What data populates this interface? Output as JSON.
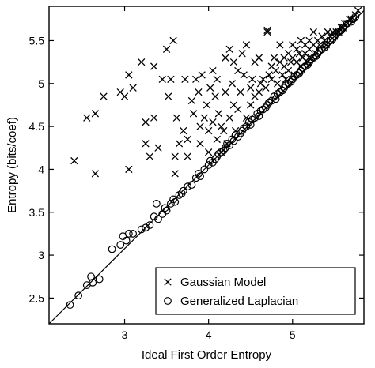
{
  "chart_data": {
    "type": "scatter",
    "title": "",
    "xlabel": "Ideal First Order Entropy",
    "ylabel": "Entropy (bits/coef)",
    "xlim": [
      2.1,
      5.85
    ],
    "ylim": [
      2.2,
      5.9
    ],
    "xticks": [
      3,
      4,
      5
    ],
    "xtick_labels": [
      "3",
      "4",
      "5"
    ],
    "yticks": [
      2.5,
      3,
      3.5,
      4,
      4.5,
      5,
      5.5
    ],
    "ytick_labels": [
      "2.5",
      "3",
      "3.5",
      "4",
      "4.5",
      "5",
      "5.5"
    ],
    "grid": false,
    "legend_position": "bottom-right",
    "reference_line": {
      "description": "y = x",
      "from": [
        2.1,
        2.1
      ],
      "to": [
        5.85,
        5.85
      ]
    },
    "series": [
      {
        "name": "Gaussian Model",
        "marker": "x",
        "points": [
          [
            2.4,
            4.1
          ],
          [
            2.55,
            4.6
          ],
          [
            2.65,
            4.65
          ],
          [
            2.65,
            3.95
          ],
          [
            2.75,
            4.85
          ],
          [
            3.05,
            4.0
          ],
          [
            2.95,
            4.9
          ],
          [
            3.0,
            4.85
          ],
          [
            3.05,
            5.1
          ],
          [
            3.1,
            4.95
          ],
          [
            3.2,
            5.25
          ],
          [
            3.25,
            4.55
          ],
          [
            3.25,
            4.3
          ],
          [
            3.3,
            4.15
          ],
          [
            3.35,
            4.6
          ],
          [
            3.35,
            5.2
          ],
          [
            3.4,
            4.25
          ],
          [
            3.45,
            5.05
          ],
          [
            3.5,
            5.4
          ],
          [
            3.52,
            4.85
          ],
          [
            3.55,
            5.05
          ],
          [
            3.58,
            5.5
          ],
          [
            3.6,
            4.15
          ],
          [
            3.6,
            3.95
          ],
          [
            3.62,
            4.6
          ],
          [
            3.65,
            4.3
          ],
          [
            3.7,
            4.45
          ],
          [
            3.72,
            5.05
          ],
          [
            3.75,
            4.35
          ],
          [
            3.75,
            4.15
          ],
          [
            3.8,
            4.8
          ],
          [
            3.82,
            4.65
          ],
          [
            3.85,
            5.05
          ],
          [
            3.88,
            4.9
          ],
          [
            3.9,
            4.5
          ],
          [
            3.9,
            4.3
          ],
          [
            3.92,
            5.1
          ],
          [
            3.95,
            4.6
          ],
          [
            3.98,
            4.75
          ],
          [
            4.0,
            4.45
          ],
          [
            4.0,
            4.2
          ],
          [
            4.02,
            4.95
          ],
          [
            4.05,
            5.15
          ],
          [
            4.05,
            4.55
          ],
          [
            4.08,
            4.85
          ],
          [
            4.1,
            4.35
          ],
          [
            4.1,
            5.05
          ],
          [
            4.12,
            4.65
          ],
          [
            4.15,
            4.2
          ],
          [
            4.15,
            4.5
          ],
          [
            4.18,
            4.45
          ],
          [
            4.2,
            4.9
          ],
          [
            4.2,
            5.3
          ],
          [
            4.22,
            4.3
          ],
          [
            4.25,
            5.4
          ],
          [
            4.25,
            4.6
          ],
          [
            4.28,
            5.0
          ],
          [
            4.3,
            5.25
          ],
          [
            4.3,
            4.75
          ],
          [
            4.32,
            4.45
          ],
          [
            4.35,
            5.15
          ],
          [
            4.35,
            4.7
          ],
          [
            4.38,
            4.9
          ],
          [
            4.4,
            5.35
          ],
          [
            4.42,
            5.1
          ],
          [
            4.45,
            4.6
          ],
          [
            4.45,
            5.45
          ],
          [
            4.5,
            4.75
          ],
          [
            4.5,
            4.95
          ],
          [
            4.52,
            5.05
          ],
          [
            4.55,
            5.25
          ],
          [
            4.55,
            4.85
          ],
          [
            4.6,
            4.9
          ],
          [
            4.6,
            5.3
          ],
          [
            4.62,
            5.0
          ],
          [
            4.65,
            5.05
          ],
          [
            4.68,
            4.95
          ],
          [
            4.7,
            5.62
          ],
          [
            4.7,
            5.6
          ],
          [
            4.72,
            5.1
          ],
          [
            4.75,
            5.2
          ],
          [
            4.75,
            5.05
          ],
          [
            4.78,
            5.3
          ],
          [
            4.8,
            5.15
          ],
          [
            4.82,
            5.0
          ],
          [
            4.85,
            5.25
          ],
          [
            4.85,
            5.45
          ],
          [
            4.88,
            5.1
          ],
          [
            4.9,
            5.3
          ],
          [
            4.9,
            5.2
          ],
          [
            4.92,
            5.05
          ],
          [
            4.95,
            5.35
          ],
          [
            4.95,
            5.15
          ],
          [
            4.98,
            5.25
          ],
          [
            5.0,
            5.3
          ],
          [
            5.0,
            5.45
          ],
          [
            5.02,
            5.1
          ],
          [
            5.05,
            5.4
          ],
          [
            5.05,
            5.25
          ],
          [
            5.08,
            5.35
          ],
          [
            5.1,
            5.5
          ],
          [
            5.1,
            5.2
          ],
          [
            5.12,
            5.3
          ],
          [
            5.15,
            5.45
          ],
          [
            5.15,
            5.35
          ],
          [
            5.18,
            5.25
          ],
          [
            5.2,
            5.5
          ],
          [
            5.2,
            5.4
          ],
          [
            5.22,
            5.3
          ],
          [
            5.25,
            5.6
          ],
          [
            5.25,
            5.45
          ],
          [
            5.28,
            5.35
          ],
          [
            5.3,
            5.5
          ],
          [
            5.3,
            5.4
          ],
          [
            5.32,
            5.45
          ],
          [
            5.35,
            5.55
          ],
          [
            5.38,
            5.5
          ],
          [
            5.4,
            5.45
          ],
          [
            5.42,
            5.6
          ],
          [
            5.45,
            5.55
          ],
          [
            5.45,
            5.5
          ],
          [
            5.48,
            5.6
          ],
          [
            5.5,
            5.55
          ],
          [
            5.52,
            5.6
          ],
          [
            5.55,
            5.6
          ],
          [
            5.58,
            5.65
          ],
          [
            5.6,
            5.65
          ],
          [
            5.62,
            5.7
          ],
          [
            5.65,
            5.7
          ],
          [
            5.68,
            5.75
          ],
          [
            5.7,
            5.75
          ],
          [
            5.75,
            5.8
          ],
          [
            5.78,
            5.85
          ]
        ]
      },
      {
        "name": "Generalized Laplacian",
        "marker": "o",
        "points": [
          [
            2.35,
            2.42
          ],
          [
            2.45,
            2.53
          ],
          [
            2.55,
            2.65
          ],
          [
            2.6,
            2.75
          ],
          [
            2.62,
            2.68
          ],
          [
            2.7,
            2.72
          ],
          [
            2.85,
            3.07
          ],
          [
            2.95,
            3.12
          ],
          [
            2.98,
            3.22
          ],
          [
            3.02,
            3.17
          ],
          [
            3.05,
            3.25
          ],
          [
            3.1,
            3.25
          ],
          [
            3.2,
            3.3
          ],
          [
            3.25,
            3.32
          ],
          [
            3.3,
            3.35
          ],
          [
            3.35,
            3.45
          ],
          [
            3.38,
            3.6
          ],
          [
            3.4,
            3.42
          ],
          [
            3.45,
            3.48
          ],
          [
            3.48,
            3.55
          ],
          [
            3.5,
            3.52
          ],
          [
            3.55,
            3.6
          ],
          [
            3.58,
            3.65
          ],
          [
            3.6,
            3.62
          ],
          [
            3.65,
            3.7
          ],
          [
            3.68,
            3.72
          ],
          [
            3.7,
            3.75
          ],
          [
            3.75,
            3.8
          ],
          [
            3.8,
            3.82
          ],
          [
            3.85,
            3.9
          ],
          [
            3.88,
            3.95
          ],
          [
            3.9,
            3.92
          ],
          [
            3.95,
            4.0
          ],
          [
            4.0,
            4.05
          ],
          [
            4.02,
            4.1
          ],
          [
            4.05,
            4.08
          ],
          [
            4.08,
            4.12
          ],
          [
            4.1,
            4.15
          ],
          [
            4.12,
            4.18
          ],
          [
            4.15,
            4.2
          ],
          [
            4.18,
            4.22
          ],
          [
            4.2,
            4.25
          ],
          [
            4.22,
            4.3
          ],
          [
            4.25,
            4.28
          ],
          [
            4.28,
            4.35
          ],
          [
            4.3,
            4.33
          ],
          [
            4.32,
            4.4
          ],
          [
            4.35,
            4.38
          ],
          [
            4.38,
            4.42
          ],
          [
            4.4,
            4.45
          ],
          [
            4.42,
            4.48
          ],
          [
            4.45,
            4.5
          ],
          [
            4.48,
            4.55
          ],
          [
            4.5,
            4.52
          ],
          [
            4.52,
            4.58
          ],
          [
            4.55,
            4.6
          ],
          [
            4.58,
            4.65
          ],
          [
            4.6,
            4.62
          ],
          [
            4.62,
            4.68
          ],
          [
            4.65,
            4.7
          ],
          [
            4.68,
            4.72
          ],
          [
            4.7,
            4.75
          ],
          [
            4.72,
            4.78
          ],
          [
            4.75,
            4.8
          ],
          [
            4.78,
            4.85
          ],
          [
            4.8,
            4.82
          ],
          [
            4.82,
            4.88
          ],
          [
            4.85,
            4.9
          ],
          [
            4.88,
            4.92
          ],
          [
            4.9,
            4.95
          ],
          [
            4.92,
            4.98
          ],
          [
            4.95,
            5.0
          ],
          [
            4.98,
            5.02
          ],
          [
            5.0,
            5.05
          ],
          [
            5.02,
            5.08
          ],
          [
            5.05,
            5.1
          ],
          [
            5.08,
            5.12
          ],
          [
            5.1,
            5.15
          ],
          [
            5.12,
            5.18
          ],
          [
            5.15,
            5.2
          ],
          [
            5.18,
            5.22
          ],
          [
            5.2,
            5.25
          ],
          [
            5.22,
            5.28
          ],
          [
            5.25,
            5.3
          ],
          [
            5.28,
            5.32
          ],
          [
            5.3,
            5.35
          ],
          [
            5.32,
            5.38
          ],
          [
            5.35,
            5.4
          ],
          [
            5.38,
            5.42
          ],
          [
            5.4,
            5.45
          ],
          [
            5.42,
            5.48
          ],
          [
            5.45,
            5.5
          ],
          [
            5.48,
            5.52
          ],
          [
            5.5,
            5.55
          ],
          [
            5.52,
            5.58
          ],
          [
            5.55,
            5.6
          ],
          [
            5.58,
            5.62
          ],
          [
            5.6,
            5.65
          ],
          [
            5.65,
            5.7
          ],
          [
            5.7,
            5.72
          ],
          [
            5.72,
            5.75
          ],
          [
            5.75,
            5.78
          ]
        ]
      }
    ]
  }
}
